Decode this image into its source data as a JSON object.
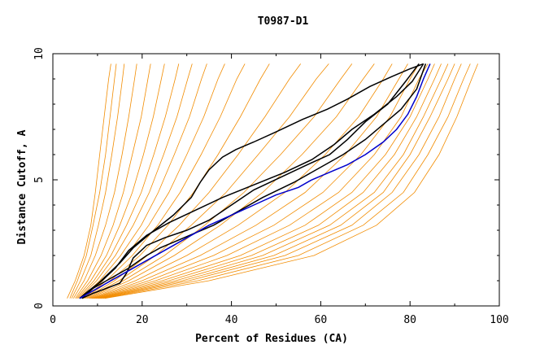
{
  "chart_data": {
    "type": "line",
    "title": "T0987-D1",
    "xlabel": "Percent of Residues (CA)",
    "ylabel": "Distance Cutoff, A",
    "xlim": [
      0,
      100
    ],
    "ylim": [
      0,
      10
    ],
    "x_ticks": [
      "0",
      "20",
      "40",
      "60",
      "80",
      "100"
    ],
    "y_ticks": [
      "0",
      "5",
      "10"
    ],
    "grid": false,
    "legend": "none",
    "colors": {
      "ensemble": "#f28c00",
      "highlight": "#000000",
      "target": "#0000cc",
      "axis": "#000000"
    },
    "series": [
      {
        "group": "ensemble",
        "x": [
          3.2,
          5.0,
          7.0,
          8.5,
          9.5,
          10.5,
          11.5,
          12.5,
          13.0
        ],
        "y": [
          0.3,
          1.0,
          2.0,
          3.2,
          4.5,
          6.0,
          7.5,
          9.0,
          9.6
        ]
      },
      {
        "group": "ensemble",
        "x": [
          3.8,
          5.5,
          7.5,
          9.0,
          10.5,
          11.8,
          12.8,
          13.8,
          14.2
        ],
        "y": [
          0.3,
          1.0,
          2.0,
          3.2,
          4.5,
          6.0,
          7.5,
          9.0,
          9.6
        ]
      },
      {
        "group": "ensemble",
        "x": [
          4.2,
          6.2,
          8.5,
          10.2,
          11.8,
          13.2,
          14.5,
          15.6,
          16.0
        ],
        "y": [
          0.3,
          1.0,
          2.0,
          3.2,
          4.5,
          6.0,
          7.5,
          9.0,
          9.6
        ]
      },
      {
        "group": "ensemble",
        "x": [
          4.6,
          7.0,
          9.5,
          11.8,
          13.8,
          15.5,
          17.0,
          18.3,
          18.8
        ],
        "y": [
          0.3,
          1.0,
          2.0,
          3.2,
          4.5,
          6.0,
          7.5,
          9.0,
          9.6
        ]
      },
      {
        "group": "ensemble",
        "x": [
          5.0,
          7.8,
          10.8,
          13.5,
          15.8,
          17.8,
          19.8,
          21.3,
          21.9
        ],
        "y": [
          0.3,
          1.0,
          2.0,
          3.2,
          4.5,
          6.0,
          7.5,
          9.0,
          9.6
        ]
      },
      {
        "group": "ensemble",
        "x": [
          5.3,
          8.5,
          12.0,
          15.0,
          17.8,
          20.3,
          22.5,
          24.3,
          25.0
        ],
        "y": [
          0.3,
          1.0,
          2.0,
          3.2,
          4.5,
          6.0,
          7.5,
          9.0,
          9.6
        ]
      },
      {
        "group": "ensemble",
        "x": [
          5.6,
          9.2,
          13.0,
          16.5,
          19.8,
          22.6,
          25.2,
          27.4,
          28.2
        ],
        "y": [
          0.3,
          1.0,
          2.0,
          3.2,
          4.5,
          6.0,
          7.5,
          9.0,
          9.6
        ]
      },
      {
        "group": "ensemble",
        "x": [
          5.9,
          9.8,
          14.0,
          18.0,
          21.6,
          24.8,
          27.8,
          30.2,
          31.2
        ],
        "y": [
          0.3,
          1.0,
          2.0,
          3.2,
          4.5,
          6.0,
          7.5,
          9.0,
          9.6
        ]
      },
      {
        "group": "ensemble",
        "x": [
          6.2,
          10.5,
          15.2,
          19.8,
          23.6,
          27.2,
          30.6,
          33.3,
          34.5
        ],
        "y": [
          0.3,
          1.0,
          2.0,
          3.2,
          4.5,
          6.0,
          7.5,
          9.0,
          9.6
        ]
      },
      {
        "group": "ensemble",
        "x": [
          6.5,
          11.2,
          16.5,
          21.5,
          26.0,
          30.0,
          33.8,
          37.0,
          38.5
        ],
        "y": [
          0.3,
          1.0,
          2.0,
          3.2,
          4.5,
          6.0,
          7.5,
          9.0,
          9.6
        ]
      },
      {
        "group": "ensemble",
        "x": [
          6.8,
          12.0,
          17.8,
          23.5,
          28.5,
          33.2,
          37.5,
          41.2,
          43.0
        ],
        "y": [
          0.3,
          1.0,
          2.0,
          3.2,
          4.5,
          6.0,
          7.5,
          9.0,
          9.6
        ]
      },
      {
        "group": "ensemble",
        "x": [
          7.0,
          12.8,
          19.5,
          25.8,
          31.5,
          37.0,
          42.0,
          46.5,
          48.5
        ],
        "y": [
          0.3,
          1.0,
          2.0,
          3.2,
          4.5,
          6.0,
          7.5,
          9.0,
          9.6
        ]
      },
      {
        "group": "ensemble",
        "x": [
          7.3,
          13.8,
          21.2,
          28.3,
          35.0,
          41.5,
          47.5,
          53.0,
          55.5
        ],
        "y": [
          0.3,
          1.0,
          2.0,
          3.2,
          4.5,
          6.0,
          7.5,
          9.0,
          9.6
        ]
      },
      {
        "group": "ensemble",
        "x": [
          7.6,
          14.8,
          23.0,
          31.0,
          38.8,
          46.0,
          53.0,
          59.0,
          61.8
        ],
        "y": [
          0.3,
          1.0,
          2.0,
          3.2,
          4.5,
          6.0,
          7.5,
          9.0,
          9.6
        ]
      },
      {
        "group": "ensemble",
        "x": [
          7.9,
          15.8,
          25.0,
          34.0,
          42.8,
          51.0,
          58.5,
          64.5,
          67.0
        ],
        "y": [
          0.3,
          1.0,
          2.0,
          3.2,
          4.5,
          6.0,
          7.5,
          9.0,
          9.6
        ]
      },
      {
        "group": "ensemble",
        "x": [
          8.2,
          17.0,
          27.2,
          37.5,
          47.0,
          55.8,
          63.5,
          69.5,
          72.0
        ],
        "y": [
          0.3,
          1.0,
          2.0,
          3.2,
          4.5,
          6.0,
          7.5,
          9.0,
          9.6
        ]
      },
      {
        "group": "ensemble",
        "x": [
          8.5,
          18.5,
          30.0,
          41.5,
          52.0,
          61.0,
          68.5,
          74.0,
          76.0
        ],
        "y": [
          0.3,
          1.0,
          2.0,
          3.2,
          4.5,
          6.0,
          7.5,
          9.0,
          9.6
        ]
      },
      {
        "group": "ensemble",
        "x": [
          8.8,
          20.0,
          33.0,
          45.5,
          56.5,
          65.5,
          72.5,
          77.5,
          79.5
        ],
        "y": [
          0.3,
          1.0,
          2.0,
          3.2,
          4.5,
          6.0,
          7.5,
          9.0,
          9.6
        ]
      },
      {
        "group": "ensemble",
        "x": [
          9.0,
          21.5,
          36.0,
          49.5,
          60.5,
          69.0,
          75.5,
          80.0,
          82.0
        ],
        "y": [
          0.3,
          1.0,
          2.0,
          3.2,
          4.5,
          6.0,
          7.5,
          9.0,
          9.6
        ]
      },
      {
        "group": "ensemble",
        "x": [
          9.3,
          23.0,
          39.0,
          53.0,
          64.0,
          72.0,
          78.0,
          82.0,
          84.0
        ],
        "y": [
          0.3,
          1.0,
          2.0,
          3.2,
          4.5,
          6.0,
          7.5,
          9.0,
          9.6
        ]
      },
      {
        "group": "ensemble",
        "x": [
          9.6,
          24.5,
          42.0,
          56.5,
          67.0,
          74.5,
          80.0,
          84.0,
          85.5
        ],
        "y": [
          0.3,
          1.0,
          2.0,
          3.2,
          4.5,
          6.0,
          7.5,
          9.0,
          9.6
        ]
      },
      {
        "group": "ensemble",
        "x": [
          9.9,
          26.0,
          44.5,
          59.5,
          69.5,
          76.5,
          81.5,
          85.5,
          87.0
        ],
        "y": [
          0.3,
          1.0,
          2.0,
          3.2,
          4.5,
          6.0,
          7.5,
          9.0,
          9.6
        ]
      },
      {
        "group": "ensemble",
        "x": [
          10.2,
          27.5,
          47.0,
          62.0,
          72.0,
          78.5,
          83.0,
          87.0,
          88.5
        ],
        "y": [
          0.3,
          1.0,
          2.0,
          3.2,
          4.5,
          6.0,
          7.5,
          9.0,
          9.6
        ]
      },
      {
        "group": "ensemble",
        "x": [
          10.5,
          29.0,
          49.5,
          64.5,
          74.0,
          80.0,
          84.5,
          88.5,
          90.0
        ],
        "y": [
          0.3,
          1.0,
          2.0,
          3.2,
          4.5,
          6.0,
          7.5,
          9.0,
          9.6
        ]
      },
      {
        "group": "ensemble",
        "x": [
          10.8,
          30.5,
          52.0,
          67.0,
          76.0,
          82.0,
          86.5,
          90.0,
          91.5
        ],
        "y": [
          0.3,
          1.0,
          2.0,
          3.2,
          4.5,
          6.0,
          7.5,
          9.0,
          9.6
        ]
      },
      {
        "group": "ensemble",
        "x": [
          11.2,
          32.5,
          55.0,
          69.5,
          78.5,
          84.0,
          88.5,
          92.0,
          93.5
        ],
        "y": [
          0.3,
          1.0,
          2.0,
          3.2,
          4.5,
          6.0,
          7.5,
          9.0,
          9.6
        ]
      },
      {
        "group": "ensemble",
        "x": [
          11.6,
          35.0,
          58.5,
          72.5,
          81.0,
          86.5,
          90.5,
          93.8,
          95.2
        ],
        "y": [
          0.3,
          1.0,
          2.0,
          3.2,
          4.5,
          6.0,
          7.5,
          9.0,
          9.6
        ]
      },
      {
        "group": "highlight",
        "x": [
          6.0,
          8.0,
          11.0,
          14.0,
          17.0,
          21.0,
          26.0,
          32.0,
          38.0,
          45.0,
          52.0,
          58.0,
          63.0,
          67.0,
          72.0,
          77.0,
          80.5,
          83.0
        ],
        "y": [
          0.3,
          0.6,
          1.0,
          1.5,
          2.2,
          2.8,
          3.3,
          3.8,
          4.3,
          4.8,
          5.3,
          5.8,
          6.4,
          7.0,
          7.6,
          8.3,
          8.9,
          9.6
        ]
      },
      {
        "group": "highlight",
        "x": [
          6.0,
          9.0,
          12.0,
          15.0,
          18.0,
          22.0,
          27.0,
          31.0,
          33.0,
          35.0,
          38.0,
          41.0,
          45.0,
          50.0,
          56.0,
          61.5,
          66.0,
          71.0,
          76.0,
          80.0,
          83.0
        ],
        "y": [
          0.3,
          0.7,
          1.2,
          1.7,
          2.3,
          2.9,
          3.6,
          4.3,
          4.9,
          5.4,
          5.9,
          6.2,
          6.5,
          6.9,
          7.4,
          7.8,
          8.2,
          8.7,
          9.1,
          9.4,
          9.6
        ]
      },
      {
        "group": "highlight",
        "x": [
          6.5,
          9.0,
          12.0,
          15.0,
          16.5,
          18.0,
          21.0,
          25.0,
          30.0,
          35.0,
          40.0,
          45.0,
          51.0,
          57.0,
          62.0,
          66.0,
          70.0,
          75.0,
          79.0,
          82.0
        ],
        "y": [
          0.3,
          0.5,
          0.7,
          0.9,
          1.3,
          1.9,
          2.4,
          2.7,
          3.0,
          3.4,
          4.0,
          4.6,
          5.1,
          5.6,
          6.0,
          6.6,
          7.3,
          8.0,
          8.9,
          9.6
        ]
      },
      {
        "group": "highlight",
        "x": [
          6.5,
          9.0,
          13.0,
          17.0,
          21.0,
          24.0,
          28.0,
          32.0,
          36.0,
          41.0,
          47.0,
          54.0,
          60.0,
          65.0,
          70.0,
          74.0,
          78.0,
          81.5,
          83.5
        ],
        "y": [
          0.3,
          0.7,
          1.1,
          1.5,
          2.0,
          2.3,
          2.6,
          2.9,
          3.2,
          3.7,
          4.3,
          4.9,
          5.5,
          6.0,
          6.6,
          7.2,
          7.8,
          8.6,
          9.6
        ]
      },
      {
        "group": "target",
        "x": [
          6.0,
          10.0,
          15.0,
          20.0,
          25.0,
          30.0,
          35.0,
          40.0,
          45.0,
          50.0,
          55.0,
          58.0,
          62.0,
          66.0,
          70.0,
          74.0,
          77.0,
          79.5,
          81.5,
          83.0,
          84.5
        ],
        "y": [
          0.3,
          0.7,
          1.2,
          1.7,
          2.2,
          2.7,
          3.2,
          3.6,
          4.0,
          4.4,
          4.7,
          5.0,
          5.3,
          5.6,
          6.0,
          6.5,
          7.0,
          7.6,
          8.3,
          9.0,
          9.6
        ]
      }
    ]
  }
}
